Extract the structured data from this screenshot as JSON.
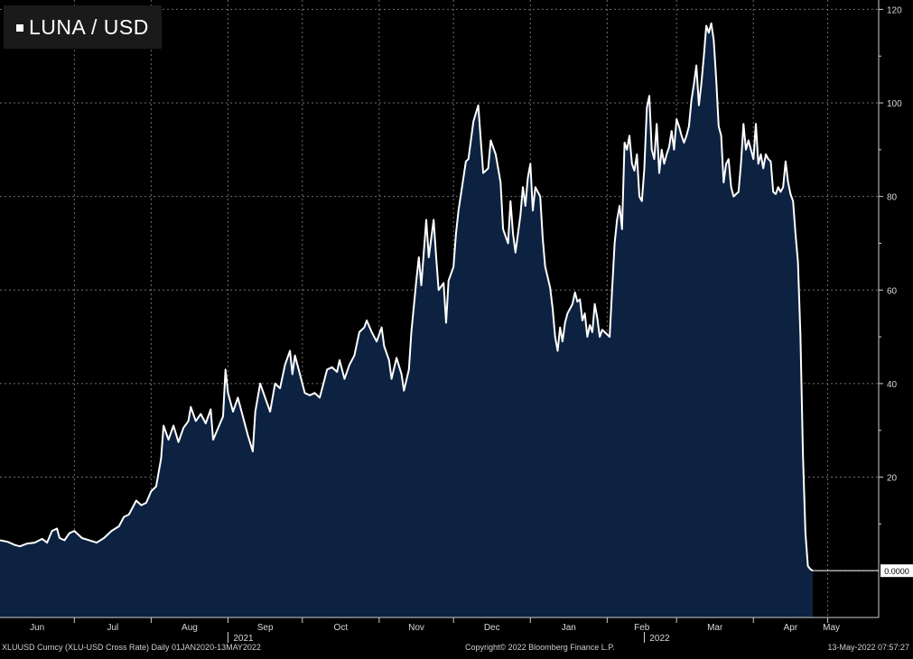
{
  "chart_data": {
    "type": "area",
    "title": "LUNA / USD",
    "ylim": [
      -10,
      122
    ],
    "yticks": [
      20,
      40,
      60,
      80,
      100,
      120
    ],
    "last_value_label": "0.0000",
    "last_value": 0,
    "months": [
      "Jun",
      "Jul",
      "Aug",
      "Sep",
      "Oct",
      "Nov",
      "Dec",
      "Jan",
      "Feb",
      "Mar",
      "Apr",
      "May"
    ],
    "years": [
      "2021",
      "2022"
    ],
    "x_range_days": [
      0,
      348
    ],
    "month_days": [
      0,
      30,
      61,
      92,
      122,
      153,
      183,
      214,
      245,
      273,
      304,
      334
    ],
    "year_days": [
      92,
      260
    ],
    "series": [
      {
        "name": "LUNA / USD",
        "points": [
          [
            0,
            6.5
          ],
          [
            3,
            6.2
          ],
          [
            6,
            5.5
          ],
          [
            8,
            5.2
          ],
          [
            11,
            5.8
          ],
          [
            14,
            6.0
          ],
          [
            17,
            6.8
          ],
          [
            19,
            6.0
          ],
          [
            21,
            8.5
          ],
          [
            23,
            9.0
          ],
          [
            24,
            7.0
          ],
          [
            26,
            6.5
          ],
          [
            28,
            8.0
          ],
          [
            30,
            8.5
          ],
          [
            33,
            7.0
          ],
          [
            36,
            6.5
          ],
          [
            39,
            6.0
          ],
          [
            42,
            7.0
          ],
          [
            45,
            8.5
          ],
          [
            48,
            9.5
          ],
          [
            50,
            11.5
          ],
          [
            52,
            12.0
          ],
          [
            55,
            15.0
          ],
          [
            57,
            14.0
          ],
          [
            59,
            14.5
          ],
          [
            61,
            17.0
          ],
          [
            63,
            18.0
          ],
          [
            65,
            24.0
          ],
          [
            66,
            31.0
          ],
          [
            68,
            28.0
          ],
          [
            70,
            31.0
          ],
          [
            72,
            27.5
          ],
          [
            74,
            30.5
          ],
          [
            76,
            32.0
          ],
          [
            77,
            35.0
          ],
          [
            79,
            32.0
          ],
          [
            81,
            33.5
          ],
          [
            83,
            31.5
          ],
          [
            85,
            34.5
          ],
          [
            86,
            28.0
          ],
          [
            88,
            30.5
          ],
          [
            90,
            33.0
          ],
          [
            91,
            43.0
          ],
          [
            92,
            38.0
          ],
          [
            94,
            34.0
          ],
          [
            96,
            37.0
          ],
          [
            98,
            33.0
          ],
          [
            100,
            29.0
          ],
          [
            102,
            25.5
          ],
          [
            103,
            34.0
          ],
          [
            105,
            40.0
          ],
          [
            107,
            37.0
          ],
          [
            109,
            34.0
          ],
          [
            111,
            40.0
          ],
          [
            113,
            39.0
          ],
          [
            115,
            44.0
          ],
          [
            117,
            47.0
          ],
          [
            118,
            42.0
          ],
          [
            119,
            46.0
          ],
          [
            121,
            42.0
          ],
          [
            123,
            38.0
          ],
          [
            125,
            37.5
          ],
          [
            127,
            38.0
          ],
          [
            129,
            37.0
          ],
          [
            130,
            39.0
          ],
          [
            132,
            43.0
          ],
          [
            134,
            43.5
          ],
          [
            136,
            42.5
          ],
          [
            137,
            45.0
          ],
          [
            139,
            41.0
          ],
          [
            141,
            44.0
          ],
          [
            143,
            46.0
          ],
          [
            145,
            51.0
          ],
          [
            147,
            52.0
          ],
          [
            148,
            53.5
          ],
          [
            150,
            51.0
          ],
          [
            152,
            49.0
          ],
          [
            154,
            52.0
          ],
          [
            155,
            48.0
          ],
          [
            157,
            45.0
          ],
          [
            158,
            41.0
          ],
          [
            160,
            45.5
          ],
          [
            162,
            42.0
          ],
          [
            163,
            38.5
          ],
          [
            165,
            43.0
          ],
          [
            166,
            51.0
          ],
          [
            168,
            62.0
          ],
          [
            169,
            67.0
          ],
          [
            170,
            61.0
          ],
          [
            172,
            75.0
          ],
          [
            173,
            67.0
          ],
          [
            175,
            75.0
          ],
          [
            176,
            67.0
          ],
          [
            177,
            60.0
          ],
          [
            179,
            61.5
          ],
          [
            180,
            53.0
          ],
          [
            181,
            62.0
          ],
          [
            183,
            65.0
          ],
          [
            184,
            72.0
          ],
          [
            185,
            77.0
          ],
          [
            187,
            84.0
          ],
          [
            188,
            87.5
          ],
          [
            189,
            88.0
          ],
          [
            191,
            96.0
          ],
          [
            193,
            99.5
          ],
          [
            194,
            92.0
          ],
          [
            195,
            85.0
          ],
          [
            197,
            86.0
          ],
          [
            198,
            92.0
          ],
          [
            200,
            89.0
          ],
          [
            202,
            83.0
          ],
          [
            203,
            73.0
          ],
          [
            205,
            70.0
          ],
          [
            206,
            79.0
          ],
          [
            207,
            72.0
          ],
          [
            208,
            68.0
          ],
          [
            210,
            76.0
          ],
          [
            211,
            82.0
          ],
          [
            212,
            78.0
          ],
          [
            213,
            84.0
          ],
          [
            214,
            87.0
          ],
          [
            215,
            77.0
          ],
          [
            216,
            82.0
          ],
          [
            218,
            80.0
          ],
          [
            219,
            71.0
          ],
          [
            220,
            65.0
          ],
          [
            222,
            60.5
          ],
          [
            223,
            56.0
          ],
          [
            224,
            50.0
          ],
          [
            225,
            47.0
          ],
          [
            226,
            52.0
          ],
          [
            227,
            49.0
          ],
          [
            228,
            53.0
          ],
          [
            229,
            55.0
          ],
          [
            230,
            56.0
          ],
          [
            231,
            57.0
          ],
          [
            232,
            59.5
          ],
          [
            233,
            57.5
          ],
          [
            234,
            58.0
          ],
          [
            235,
            53.5
          ],
          [
            236,
            55.0
          ],
          [
            237,
            50.0
          ],
          [
            238,
            52.5
          ],
          [
            239,
            51.0
          ],
          [
            240,
            57.0
          ],
          [
            241,
            54.0
          ],
          [
            242,
            50.0
          ],
          [
            243,
            51.5
          ],
          [
            244,
            51.0
          ],
          [
            246,
            50.0
          ],
          [
            247,
            60.0
          ],
          [
            248,
            70.0
          ],
          [
            249,
            75.0
          ],
          [
            250,
            78.0
          ],
          [
            251,
            73.0
          ],
          [
            252,
            91.5
          ],
          [
            253,
            90.0
          ],
          [
            254,
            93.0
          ],
          [
            255,
            87.0
          ],
          [
            256,
            85.5
          ],
          [
            257,
            89.0
          ],
          [
            258,
            80.0
          ],
          [
            259,
            79.0
          ],
          [
            260,
            86.0
          ],
          [
            261,
            99.0
          ],
          [
            262,
            101.5
          ],
          [
            263,
            90.0
          ],
          [
            264,
            88.0
          ],
          [
            265,
            95.5
          ],
          [
            266,
            85.0
          ],
          [
            267,
            90.0
          ],
          [
            268,
            87.0
          ],
          [
            269,
            89.0
          ],
          [
            270,
            90.5
          ],
          [
            271,
            94.0
          ],
          [
            272,
            90.0
          ],
          [
            273,
            96.5
          ],
          [
            274,
            95.0
          ],
          [
            275,
            93.0
          ],
          [
            276,
            91.5
          ],
          [
            277,
            93.0
          ],
          [
            278,
            95.0
          ],
          [
            279,
            100.5
          ],
          [
            280,
            104.0
          ],
          [
            281,
            108.0
          ],
          [
            282,
            99.5
          ],
          [
            283,
            104.0
          ],
          [
            284,
            110.0
          ],
          [
            285,
            116.5
          ],
          [
            286,
            115.0
          ],
          [
            287,
            117.0
          ],
          [
            288,
            113.5
          ],
          [
            289,
            105.0
          ],
          [
            290,
            95.0
          ],
          [
            291,
            93.0
          ],
          [
            292,
            83.0
          ],
          [
            293,
            87.0
          ],
          [
            294,
            88.0
          ],
          [
            295,
            82.0
          ],
          [
            296,
            80.0
          ],
          [
            298,
            81.0
          ],
          [
            299,
            87.0
          ],
          [
            300,
            95.5
          ],
          [
            301,
            90.0
          ],
          [
            302,
            92.0
          ],
          [
            303,
            90.0
          ],
          [
            304,
            88.0
          ],
          [
            305,
            95.5
          ],
          [
            306,
            87.0
          ],
          [
            307,
            89.0
          ],
          [
            308,
            86.0
          ],
          [
            309,
            89.0
          ],
          [
            310,
            88.0
          ],
          [
            311,
            87.5
          ],
          [
            312,
            81.0
          ],
          [
            313,
            80.5
          ],
          [
            314,
            82.0
          ],
          [
            315,
            81.0
          ],
          [
            316,
            82.0
          ],
          [
            317,
            87.5
          ],
          [
            318,
            83.0
          ],
          [
            319,
            80.5
          ],
          [
            320,
            79.0
          ],
          [
            321,
            72.0
          ],
          [
            322,
            66.0
          ],
          [
            323,
            50.0
          ],
          [
            324,
            25.0
          ],
          [
            325,
            8.0
          ],
          [
            326,
            1.0
          ],
          [
            327,
            0.3
          ],
          [
            328,
            0.0
          ]
        ]
      }
    ]
  },
  "footer": {
    "left": "XLUUSD Curncy (XLU-USD Cross Rate)  Daily 01JAN2020-13MAY2022",
    "center": "Copyright© 2022 Bloomberg Finance L.P.",
    "right": "13-May-2022 07:57:27"
  },
  "colors": {
    "background": "#000000",
    "fill": "#0c2240",
    "line": "#ffffff",
    "grid": "#8a8a8a"
  }
}
